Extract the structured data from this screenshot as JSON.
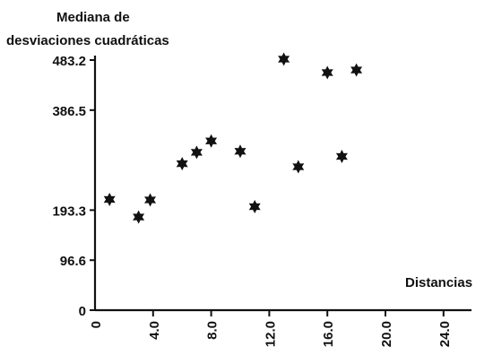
{
  "chart_data": {
    "type": "scatter",
    "title": "",
    "ylabel_line1": "Mediana de",
    "ylabel_line2": "desviaciones cuadráticas",
    "xlabel": "Distancias",
    "xlim": [
      0,
      26
    ],
    "ylim": [
      0,
      500
    ],
    "x_ticks": [
      0,
      4.0,
      8.0,
      12.0,
      16.0,
      20.0,
      24.0
    ],
    "x_tick_labels": [
      "0",
      "4.0",
      "8.0",
      "12.0",
      "16.0",
      "20.0",
      "24.0"
    ],
    "y_ticks": [
      0,
      96.6,
      193.3,
      386.5,
      483.2
    ],
    "y_tick_labels": [
      "0",
      "96.6",
      "193.3",
      "386.5",
      "483.2"
    ],
    "grid": false,
    "marker": "star",
    "points": [
      {
        "x": 1.0,
        "y": 214
      },
      {
        "x": 3.0,
        "y": 180
      },
      {
        "x": 3.8,
        "y": 213
      },
      {
        "x": 6.0,
        "y": 283
      },
      {
        "x": 7.0,
        "y": 305
      },
      {
        "x": 8.0,
        "y": 327
      },
      {
        "x": 10.0,
        "y": 307
      },
      {
        "x": 11.0,
        "y": 200
      },
      {
        "x": 13.0,
        "y": 485
      },
      {
        "x": 14.0,
        "y": 277
      },
      {
        "x": 16.0,
        "y": 459
      },
      {
        "x": 17.0,
        "y": 297
      },
      {
        "x": 18.0,
        "y": 464
      }
    ]
  }
}
